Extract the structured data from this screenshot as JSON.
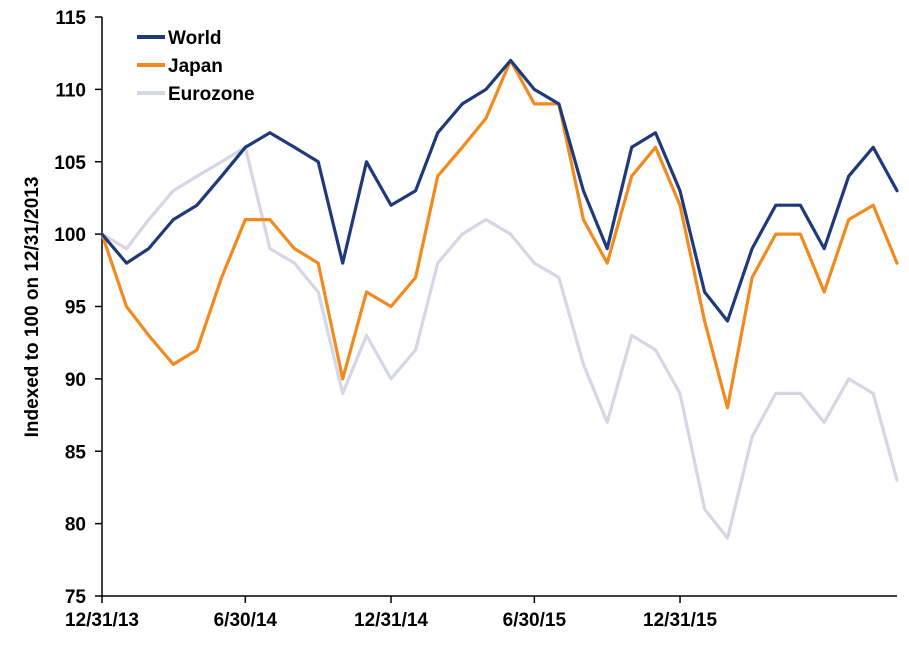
{
  "chart_data": {
    "type": "line",
    "title": "",
    "xlabel": "",
    "ylabel": "Indexed to 100 on 12/31/2013",
    "ylim": [
      75,
      115
    ],
    "yticks": [
      75,
      80,
      85,
      90,
      95,
      100,
      105,
      110,
      115
    ],
    "xlim": [
      "12/31/13",
      "9/30/16"
    ],
    "xtick_labels": [
      "12/31/13",
      "6/30/14",
      "12/31/14",
      "6/30/15",
      "12/31/15"
    ],
    "grid": false,
    "legend_position": "top-left",
    "x": [
      "12/31/13",
      "1/31/14",
      "2/28/14",
      "3/31/14",
      "4/30/14",
      "5/31/14",
      "6/30/14",
      "7/31/14",
      "8/31/14",
      "9/30/14",
      "10/31/14",
      "11/30/14",
      "12/31/14",
      "1/31/15",
      "2/28/15",
      "3/31/15",
      "4/30/15",
      "5/31/15",
      "6/30/15",
      "7/31/15",
      "8/31/15",
      "9/30/15",
      "10/31/15",
      "11/30/15",
      "12/31/15",
      "1/31/16",
      "2/29/16",
      "3/31/16",
      "4/30/16",
      "5/31/16",
      "6/30/16",
      "7/31/16",
      "8/31/16",
      "9/30/16"
    ],
    "series": [
      {
        "name": "World",
        "color": "#1f3a7a",
        "values": [
          100,
          98,
          99,
          101,
          102,
          104,
          106,
          107,
          106,
          105,
          98,
          105,
          102,
          103,
          107,
          109,
          110,
          112,
          110,
          109,
          103,
          99,
          106,
          107,
          103,
          96,
          94,
          99,
          102,
          102,
          99,
          104,
          106,
          103
        ]
      },
      {
        "name": "Japan",
        "color": "#f28a1e",
        "values": [
          100,
          95,
          93,
          91,
          92,
          97,
          101,
          101,
          99,
          98,
          90,
          96,
          95,
          97,
          104,
          106,
          108,
          112,
          109,
          109,
          101,
          98,
          104,
          106,
          102,
          94,
          88,
          97,
          100,
          100,
          96,
          101,
          102,
          98
        ]
      },
      {
        "name": "Eurozone",
        "color": "#d5d6e6",
        "values": [
          100,
          99,
          101,
          103,
          104,
          105,
          106,
          99,
          98,
          96,
          89,
          93,
          90,
          92,
          98,
          100,
          101,
          100,
          98,
          97,
          91,
          87,
          93,
          92,
          89,
          81,
          79,
          86,
          89,
          89,
          87,
          90,
          89,
          83
        ]
      }
    ]
  }
}
